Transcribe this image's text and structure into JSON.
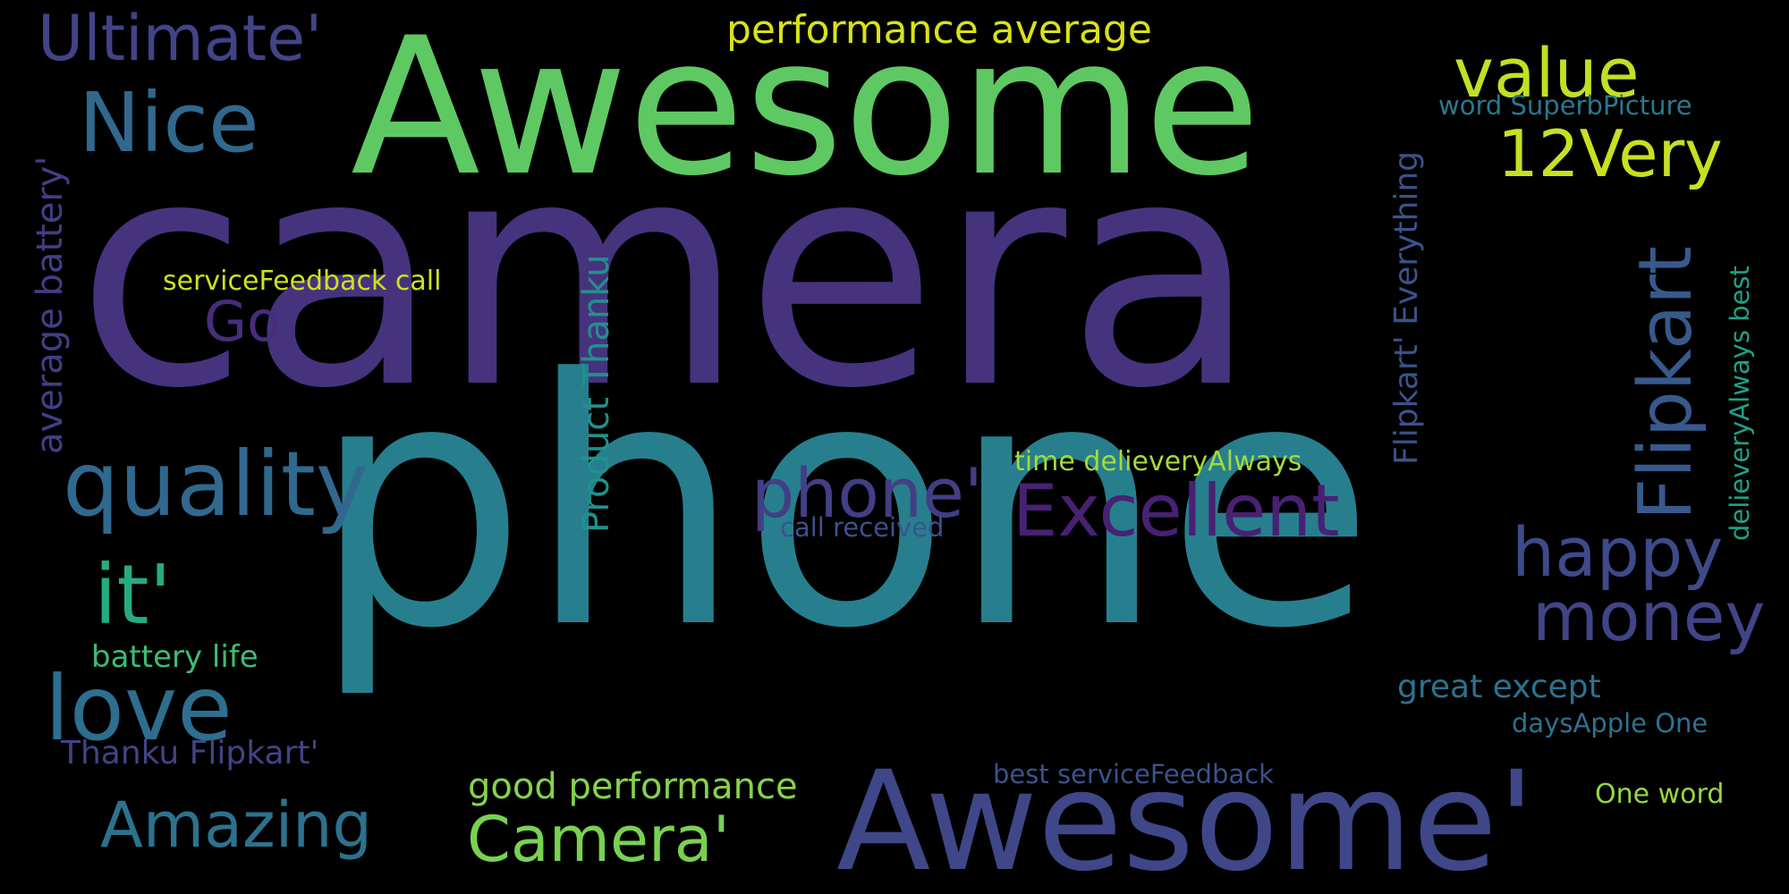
{
  "background": "#000000",
  "words": [
    {
      "text": "camera",
      "color": "#46337e"
    },
    {
      "text": "phone",
      "color": "#277f8e"
    },
    {
      "text": "Awesome",
      "color": "#5ec962"
    },
    {
      "text": "Awesome'",
      "color": "#3f4788"
    },
    {
      "text": "Ultimate'",
      "color": "#414487"
    },
    {
      "text": "Nice",
      "color": "#31688e"
    },
    {
      "text": "performance average",
      "color": "#d8e219"
    },
    {
      "text": "value",
      "color": "#c2df23"
    },
    {
      "text": "12Very",
      "color": "#c8e020"
    },
    {
      "text": "word SuperbPicture",
      "color": "#2a788e"
    },
    {
      "text": "Flipkart' Everything",
      "color": "#3b528b"
    },
    {
      "text": "Flipkart",
      "color": "#38598c"
    },
    {
      "text": "average battery'",
      "color": "#433e85"
    },
    {
      "text": "serviceFeedback call",
      "color": "#d0e11c"
    },
    {
      "text": "Go",
      "color": "#472d7b"
    },
    {
      "text": "Product Thanku",
      "color": "#21918c"
    },
    {
      "text": "delieveryAlways best",
      "color": "#1fa187"
    },
    {
      "text": "quality",
      "color": "#31688e"
    },
    {
      "text": "phone'",
      "color": "#433e85"
    },
    {
      "text": "Excellent",
      "color": "#482173"
    },
    {
      "text": "time delieveryAlways",
      "color": "#a5db36"
    },
    {
      "text": "call received",
      "color": "#3b528b"
    },
    {
      "text": "it'",
      "color": "#25ab82"
    },
    {
      "text": "happy",
      "color": "#3e4a89"
    },
    {
      "text": "money",
      "color": "#414487"
    },
    {
      "text": "love",
      "color": "#2e6e8e"
    },
    {
      "text": "battery life",
      "color": "#3dbc74"
    },
    {
      "text": "great except",
      "color": "#2c728e"
    },
    {
      "text": "daysApple One",
      "color": "#2c728e"
    },
    {
      "text": "Thanku Flipkart'",
      "color": "#414487"
    },
    {
      "text": "good performance",
      "color": "#84d44b"
    },
    {
      "text": "best serviceFeedback",
      "color": "#3b528b"
    },
    {
      "text": "One word",
      "color": "#95d840"
    },
    {
      "text": "Amazing",
      "color": "#2c728e"
    },
    {
      "text": "Camera'",
      "color": "#7ad151"
    }
  ]
}
